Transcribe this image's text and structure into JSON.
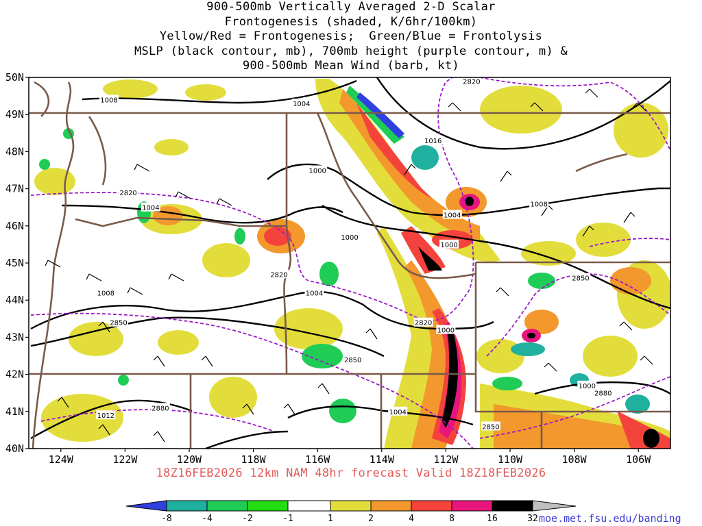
{
  "title_lines": [
    "900-500mb Vertically Averaged 2-D Scalar",
    "Frontogenesis (shaded, K/6hr/100km)",
    "Yellow/Red = Frontogenesis;  Green/Blue = Frontolysis",
    "MSLP (black contour, mb), 700mb height (purple contour, m) &",
    "900-500mb Mean Wind (barb, kt)"
  ],
  "forecast_label": "18Z16FEB2026 12km NAM 48hr forecast Valid 18Z18FEB2026",
  "source_url": "moe.met.fsu.edu/banding",
  "lat_labels": [
    "50N",
    "49N",
    "48N",
    "47N",
    "46N",
    "45N",
    "44N",
    "43N",
    "42N",
    "41N",
    "40N"
  ],
  "lon_labels": [
    "124W",
    "122W",
    "120W",
    "118W",
    "116W",
    "114W",
    "112W",
    "110W",
    "108W",
    "106W"
  ],
  "mslp_labels": [
    {
      "text": "1008",
      "lon": -122.5,
      "lat": 49.4
    },
    {
      "text": "1004",
      "lon": -116.5,
      "lat": 49.3
    },
    {
      "text": "1000",
      "lon": -116.0,
      "lat": 47.5
    },
    {
      "text": "1016",
      "lon": -112.4,
      "lat": 48.3
    },
    {
      "text": "1004",
      "lon": -121.2,
      "lat": 46.5
    },
    {
      "text": "1000",
      "lon": -115.0,
      "lat": 45.7
    },
    {
      "text": "1004",
      "lon": -111.8,
      "lat": 46.3
    },
    {
      "text": "1000",
      "lon": -111.9,
      "lat": 45.5
    },
    {
      "text": "1008",
      "lon": -109.1,
      "lat": 46.6
    },
    {
      "text": "1008",
      "lon": -122.6,
      "lat": 44.2
    },
    {
      "text": "1004",
      "lon": -116.1,
      "lat": 44.2
    },
    {
      "text": "1000",
      "lon": -112.0,
      "lat": 43.2
    },
    {
      "text": "1004",
      "lon": -113.5,
      "lat": 41.0
    },
    {
      "text": "1012",
      "lon": -122.6,
      "lat": 40.9
    },
    {
      "text": "1000",
      "lon": -107.6,
      "lat": 41.7
    }
  ],
  "height_labels": [
    {
      "text": "2820",
      "lon": -111.2,
      "lat": 49.9
    },
    {
      "text": "2820",
      "lon": -121.9,
      "lat": 46.9
    },
    {
      "text": "2820",
      "lon": -117.2,
      "lat": 44.7
    },
    {
      "text": "2820",
      "lon": -112.7,
      "lat": 43.4
    },
    {
      "text": "2850",
      "lon": -122.2,
      "lat": 43.4
    },
    {
      "text": "2850",
      "lon": -114.9,
      "lat": 42.4
    },
    {
      "text": "2850",
      "lon": -107.8,
      "lat": 44.6
    },
    {
      "text": "2880",
      "lon": -107.1,
      "lat": 41.5
    },
    {
      "text": "2880",
      "lon": -120.9,
      "lat": 41.1
    },
    {
      "text": "2850",
      "lon": -110.6,
      "lat": 40.6
    }
  ],
  "colorbar_labels": [
    "-8",
    "-4",
    "-2",
    "-1",
    "1",
    "2",
    "4",
    "8",
    "16",
    "32"
  ],
  "colors": {
    "blue": "#2f3fe0",
    "teal": "#1fb0a0",
    "green": "#1fcc55",
    "brightgreen": "#22dd11",
    "yellow": "#e3dd3c",
    "orange": "#f2982c",
    "red": "#f4433c",
    "magenta": "#e8157d",
    "black": "#000000",
    "gray": "#bfbfbf",
    "border": "#7a5a4a",
    "height": "#9a19c8"
  }
}
